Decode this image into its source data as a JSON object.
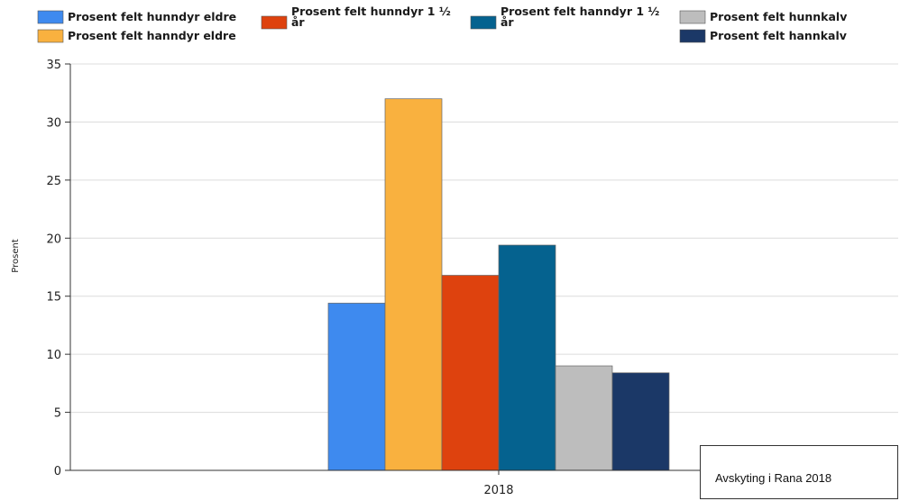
{
  "chart_data": {
    "type": "bar",
    "categories": [
      "2018"
    ],
    "series": [
      {
        "name": "Prosent felt hunndyr eldre",
        "values": [
          14.4
        ],
        "color": "#3E8AEF"
      },
      {
        "name": "Prosent felt hanndyr eldre",
        "values": [
          32.0
        ],
        "color": "#F9B13F"
      },
      {
        "name": "Prosent felt hunndyr 1 ½ år",
        "values": [
          16.8
        ],
        "color": "#DE420E"
      },
      {
        "name": "Prosent felt hanndyr 1 ½ år",
        "values": [
          19.4
        ],
        "color": "#05628F"
      },
      {
        "name": "Prosent felt hunnkalv",
        "values": [
          9.0
        ],
        "color": "#BDBDBD"
      },
      {
        "name": "Prosent felt hannkalv",
        "values": [
          8.4
        ],
        "color": "#1B3867"
      }
    ],
    "ylabel": "Prosent",
    "xlabel": "",
    "ylim": [
      0,
      35
    ],
    "yticks": [
      0,
      5,
      10,
      15,
      20,
      25,
      30,
      35
    ],
    "grid": true,
    "legend_position": "top"
  },
  "caption": "Avskyting i Rana 2018"
}
